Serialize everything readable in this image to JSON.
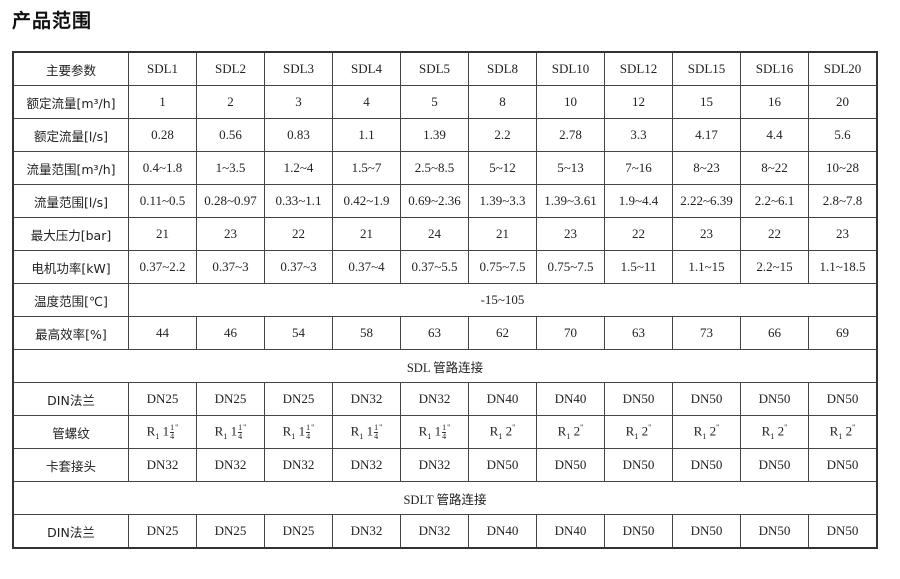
{
  "title": "产品范围",
  "header": {
    "label": "主要参数",
    "models": [
      "SDL1",
      "SDL2",
      "SDL3",
      "SDL4",
      "SDL5",
      "SDL8",
      "SDL10",
      "SDL12",
      "SDL15",
      "SDL16",
      "SDL20"
    ]
  },
  "rows": [
    {
      "label": "额定流量[m³/h]",
      "values": [
        "1",
        "2",
        "3",
        "4",
        "5",
        "8",
        "10",
        "12",
        "15",
        "16",
        "20"
      ]
    },
    {
      "label": "额定流量[l/s]",
      "values": [
        "0.28",
        "0.56",
        "0.83",
        "1.1",
        "1.39",
        "2.2",
        "2.78",
        "3.3",
        "4.17",
        "4.4",
        "5.6"
      ]
    },
    {
      "label": "流量范围[m³/h]",
      "values": [
        "0.4~1.8",
        "1~3.5",
        "1.2~4",
        "1.5~7",
        "2.5~8.5",
        "5~12",
        "5~13",
        "7~16",
        "8~23",
        "8~22",
        "10~28"
      ]
    },
    {
      "label": "流量范围[l/s]",
      "values": [
        "0.11~0.5",
        "0.28~0.97",
        "0.33~1.1",
        "0.42~1.9",
        "0.69~2.36",
        "1.39~3.3",
        "1.39~3.61",
        "1.9~4.4",
        "2.22~6.39",
        "2.2~6.1",
        "2.8~7.8"
      ]
    },
    {
      "label": "最大压力[bar]",
      "values": [
        "21",
        "23",
        "22",
        "21",
        "24",
        "21",
        "23",
        "22",
        "23",
        "22",
        "23"
      ]
    },
    {
      "label": "电机功率[kW]",
      "values": [
        "0.37~2.2",
        "0.37~3",
        "0.37~3",
        "0.37~4",
        "0.37~5.5",
        "0.75~7.5",
        "0.75~7.5",
        "1.5~11",
        "1.1~15",
        "2.2~15",
        "1.1~18.5"
      ]
    }
  ],
  "temperature": {
    "label": "温度范围[℃]",
    "value": "-15~105"
  },
  "efficiency": {
    "label": "最高效率[%]",
    "values": [
      "44",
      "46",
      "54",
      "58",
      "63",
      "62",
      "70",
      "63",
      "73",
      "66",
      "69"
    ]
  },
  "sdl_section": "SDL 管路连接",
  "din_flange": {
    "label": "DIN法兰",
    "values": [
      "DN25",
      "DN25",
      "DN25",
      "DN32",
      "DN32",
      "DN40",
      "DN40",
      "DN50",
      "DN50",
      "DN50",
      "DN50"
    ]
  },
  "pipe_thread": {
    "label": "管螺纹",
    "values": [
      {
        "r": "R",
        "sub": "1",
        "whole": "1",
        "num": "1",
        "den": "4",
        "q": "\""
      },
      {
        "r": "R",
        "sub": "1",
        "whole": "1",
        "num": "1",
        "den": "4",
        "q": "\""
      },
      {
        "r": "R",
        "sub": "1",
        "whole": "1",
        "num": "1",
        "den": "4",
        "q": "\""
      },
      {
        "r": "R",
        "sub": "1",
        "whole": "1",
        "num": "1",
        "den": "4",
        "q": "\""
      },
      {
        "r": "R",
        "sub": "1",
        "whole": "1",
        "num": "1",
        "den": "4",
        "q": "\""
      },
      {
        "r": "R",
        "sub": "1",
        "whole": "2",
        "q": "\""
      },
      {
        "r": "R",
        "sub": "1",
        "whole": "2",
        "q": "\""
      },
      {
        "r": "R",
        "sub": "1",
        "whole": "2",
        "q": "\""
      },
      {
        "r": "R",
        "sub": "1",
        "whole": "2",
        "q": "\""
      },
      {
        "r": "R",
        "sub": "1",
        "whole": "2",
        "q": "\""
      },
      {
        "r": "R",
        "sub": "1",
        "whole": "2",
        "q": "\""
      }
    ]
  },
  "compression": {
    "label": "卡套接头",
    "values": [
      "DN32",
      "DN32",
      "DN32",
      "DN32",
      "DN32",
      "DN50",
      "DN50",
      "DN50",
      "DN50",
      "DN50",
      "DN50"
    ]
  },
  "sdlt_section": "SDLT 管路连接",
  "sdlt_flange": {
    "label": "DIN法兰",
    "values": [
      "DN25",
      "DN25",
      "DN25",
      "DN32",
      "DN32",
      "DN40",
      "DN40",
      "DN50",
      "DN50",
      "DN50",
      "DN50"
    ]
  }
}
